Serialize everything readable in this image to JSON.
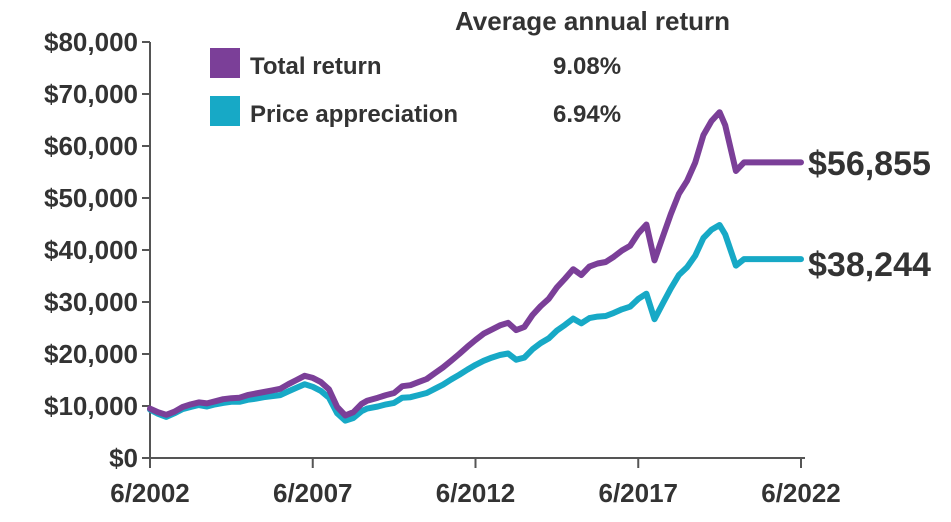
{
  "chart_data": {
    "type": "line",
    "title": "",
    "xlabel": "",
    "ylabel": "",
    "ylim": [
      0,
      80000
    ],
    "xlim": [
      "6/2002",
      "6/2022"
    ],
    "yticks": [
      "$0",
      "$10,000",
      "$20,000",
      "$30,000",
      "$40,000",
      "$50,000",
      "$60,000",
      "$70,000",
      "$80,000"
    ],
    "ytick_values": [
      0,
      10000,
      20000,
      30000,
      40000,
      50000,
      60000,
      70000,
      80000
    ],
    "xticks": [
      "6/2002",
      "6/2007",
      "6/2012",
      "6/2017",
      "6/2022"
    ],
    "grid": false,
    "legend": {
      "position": "top-left",
      "header": "Average annual return",
      "entries": [
        {
          "name": "Total return",
          "value": "9.08%",
          "color": "#7B3F98"
        },
        {
          "name": "Price appreciation",
          "value": "6.94%",
          "color": "#17A9C6"
        }
      ]
    },
    "end_labels": [
      "$56,855",
      "$38,244"
    ],
    "x_years": [
      2002.5,
      2002.75,
      2003.0,
      2003.25,
      2003.5,
      2003.75,
      2004.0,
      2004.25,
      2004.5,
      2004.75,
      2005.0,
      2005.25,
      2005.5,
      2005.75,
      2006.0,
      2006.25,
      2006.5,
      2006.75,
      2007.0,
      2007.25,
      2007.5,
      2007.75,
      2008.0,
      2008.25,
      2008.5,
      2008.75,
      2009.0,
      2009.17,
      2009.5,
      2009.75,
      2010.0,
      2010.25,
      2010.5,
      2010.75,
      2011.0,
      2011.25,
      2011.5,
      2011.75,
      2012.0,
      2012.25,
      2012.5,
      2012.75,
      2013.0,
      2013.25,
      2013.5,
      2013.75,
      2014.0,
      2014.25,
      2014.5,
      2014.75,
      2015.0,
      2015.25,
      2015.5,
      2015.75,
      2016.0,
      2016.25,
      2016.5,
      2016.75,
      2017.0,
      2017.25,
      2017.5,
      2017.75,
      2018.0,
      2018.25,
      2018.5,
      2018.75,
      2019.0,
      2019.25,
      2019.5,
      2019.75,
      2020.0,
      2020.17,
      2020.5,
      2020.75,
      2021.0,
      2021.25,
      2021.5,
      2021.75,
      2022.0,
      2022.25,
      2022.5
    ],
    "series": [
      {
        "name": "Total return",
        "color": "#7B3F98",
        "values": [
          9500,
          8800,
          8300,
          8900,
          9800,
          10300,
          10700,
          10500,
          10900,
          11300,
          11500,
          11600,
          12100,
          12400,
          12700,
          13000,
          13300,
          14200,
          15000,
          15800,
          15400,
          14600,
          13200,
          9800,
          8200,
          8800,
          10400,
          11000,
          11600,
          12100,
          12500,
          13800,
          14000,
          14600,
          15200,
          16300,
          17400,
          18700,
          20000,
          21400,
          22700,
          23900,
          24700,
          25500,
          26000,
          24600,
          25200,
          27500,
          29200,
          30600,
          32800,
          34500,
          36300,
          35200,
          36800,
          37400,
          37700,
          38700,
          39900,
          40800,
          43200,
          44900,
          38000,
          42500,
          46900,
          50800,
          53300,
          56800,
          62100,
          64800,
          66500,
          64000,
          55200,
          56855,
          56855,
          56855,
          56855,
          56855,
          56855,
          56855,
          56855
        ]
      },
      {
        "name": "Price appreciation",
        "color": "#17A9C6",
        "values": [
          9300,
          8500,
          7900,
          8600,
          9400,
          9800,
          10200,
          9900,
          10300,
          10600,
          10800,
          10800,
          11200,
          11400,
          11700,
          11900,
          12100,
          12800,
          13500,
          14200,
          13700,
          12900,
          11600,
          8600,
          7200,
          7700,
          9000,
          9500,
          9900,
          10300,
          10600,
          11600,
          11700,
          12100,
          12500,
          13300,
          14100,
          15100,
          16000,
          17000,
          17900,
          18700,
          19300,
          19800,
          20100,
          18900,
          19300,
          20900,
          22100,
          23000,
          24500,
          25600,
          26800,
          25900,
          26900,
          27200,
          27300,
          27900,
          28600,
          29100,
          30600,
          31600,
          26700,
          29700,
          32600,
          35200,
          36700,
          38900,
          42300,
          43900,
          44800,
          43000,
          37000,
          38244,
          38244,
          38244,
          38244,
          38244,
          38244,
          38244,
          38244
        ]
      }
    ]
  }
}
